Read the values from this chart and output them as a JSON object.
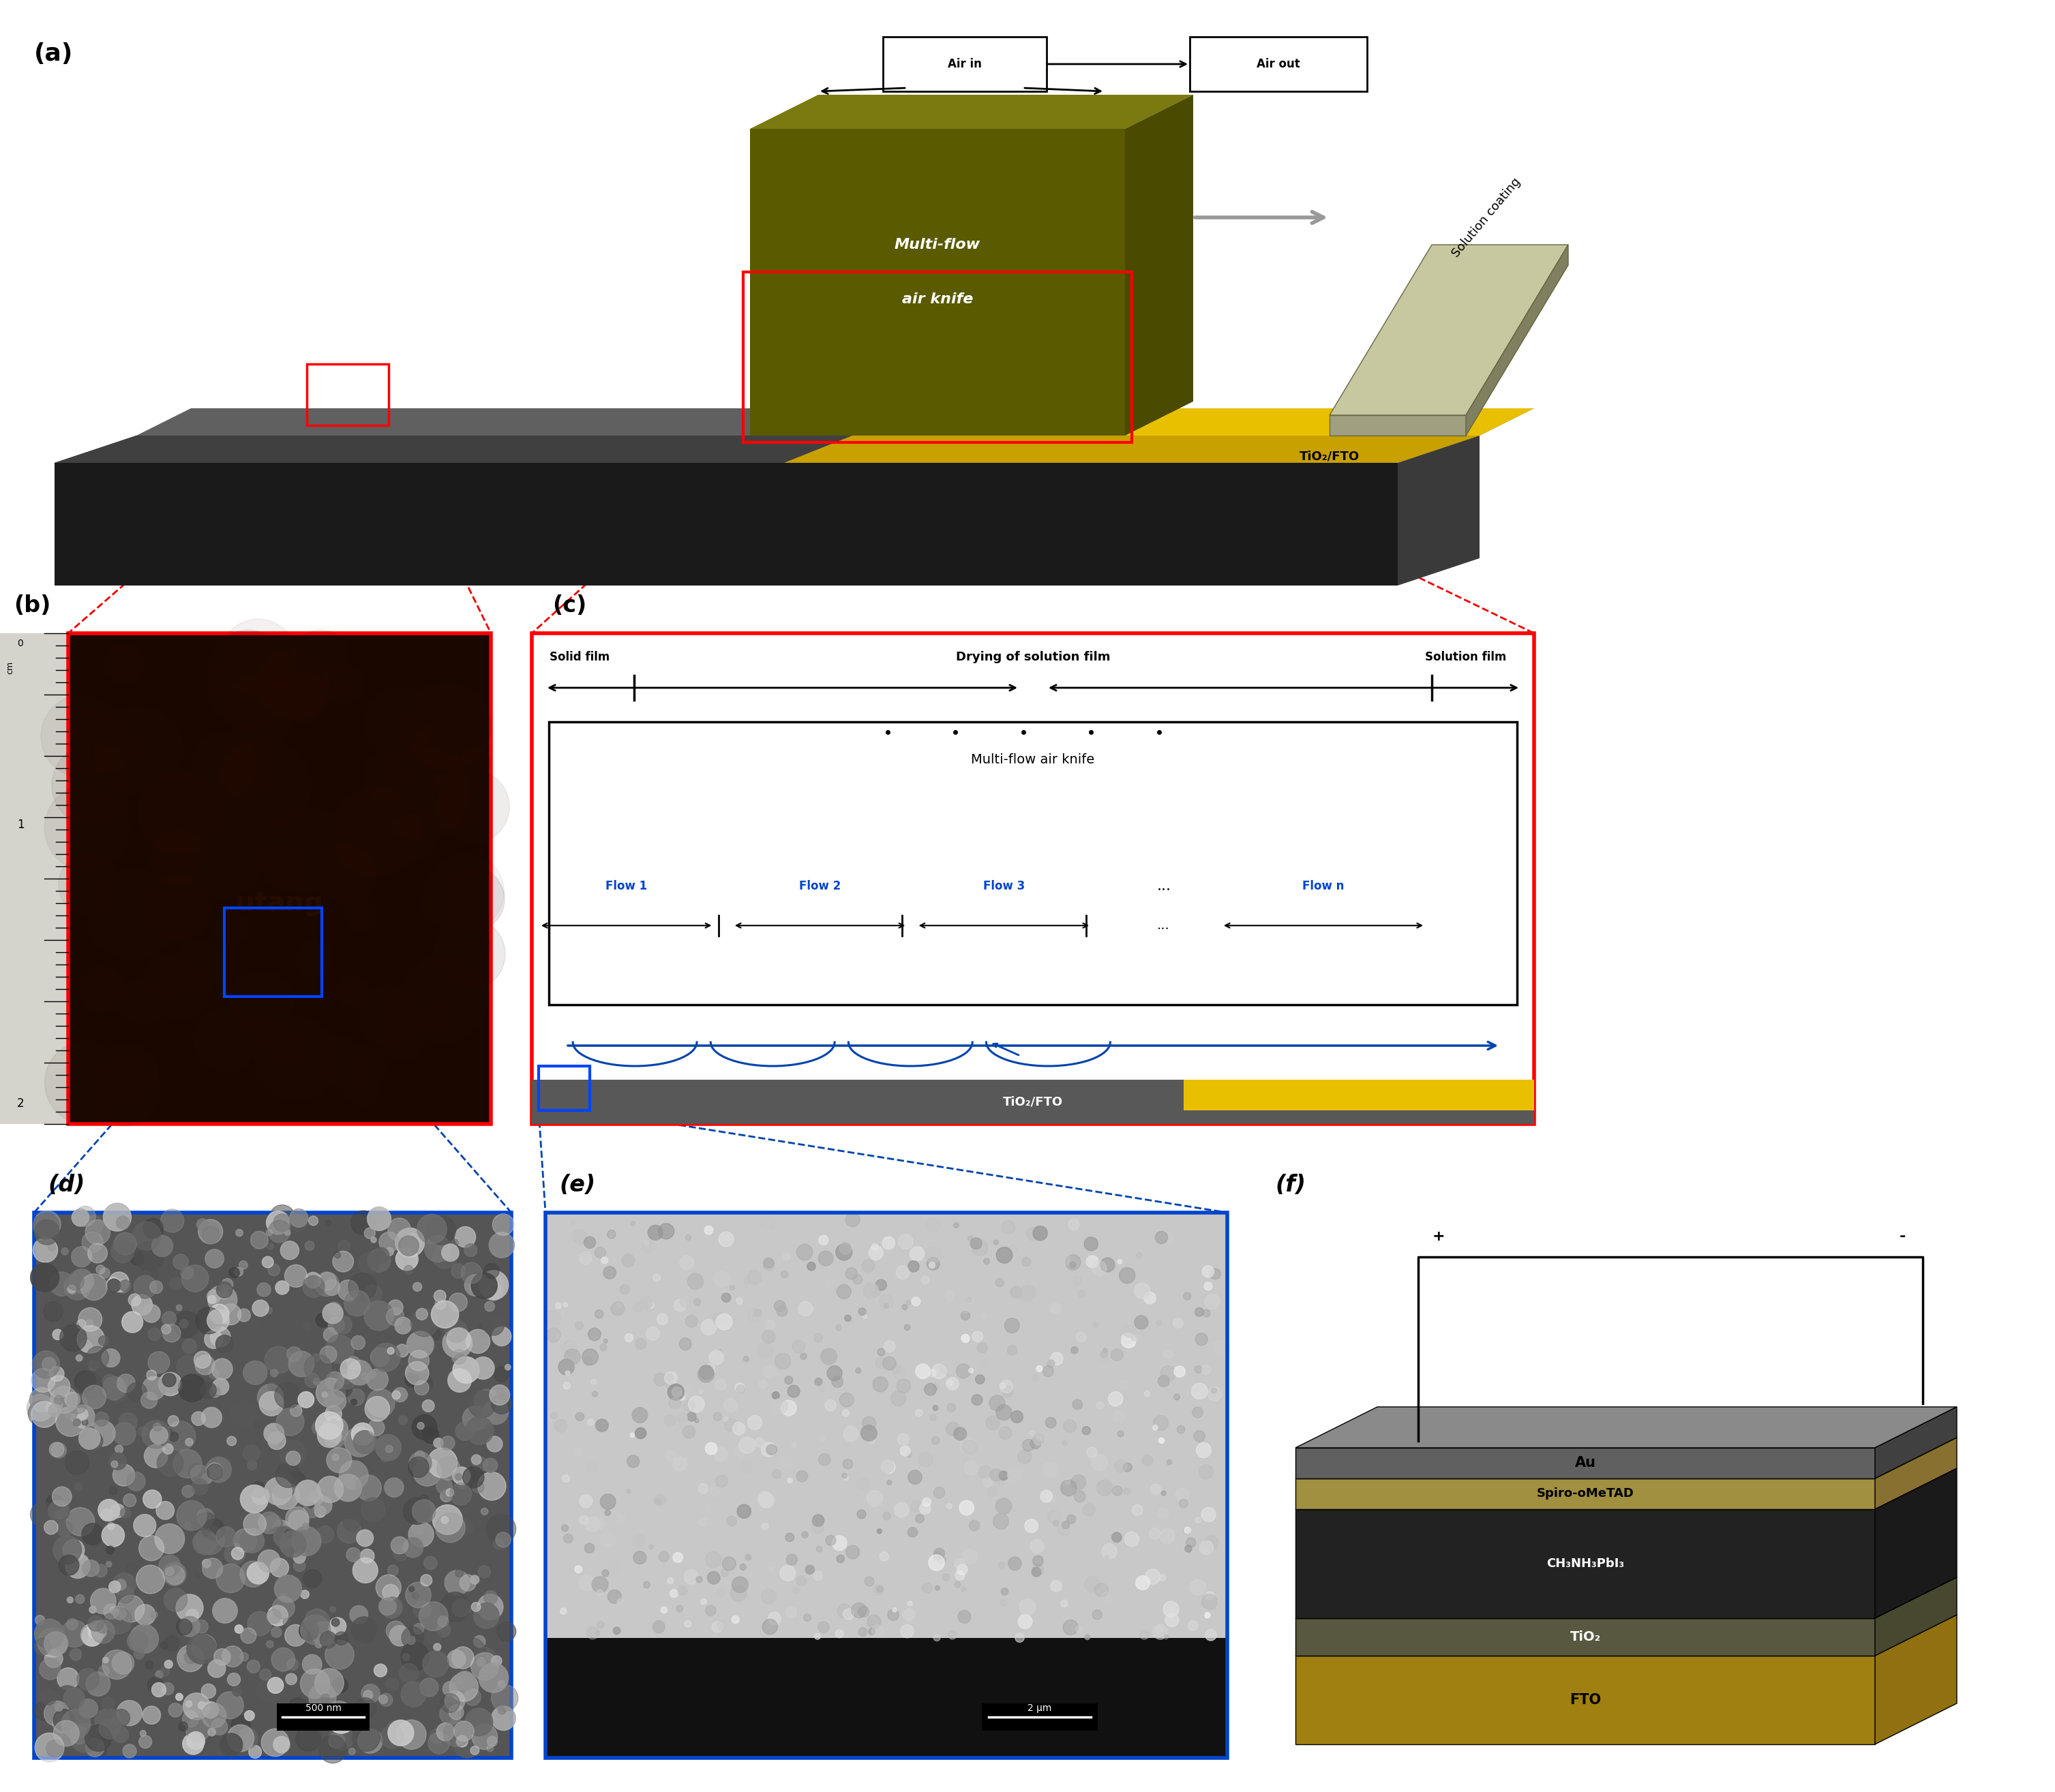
{
  "bg_color": "#ffffff",
  "panel_a": {
    "label": "(a)",
    "substrate_top_color": "#2d2d2d",
    "substrate_front_color": "#1a1a1a",
    "substrate_right_color": "#3a3a3a",
    "substrate_gray_top": "#606060",
    "substrate_gray_front": "#404040",
    "substrate_gray_right": "#505050",
    "air_knife_top_color": "#7a7a10",
    "air_knife_front_color": "#5a5a00",
    "air_knife_right_color": "#4a4a00",
    "solution_top_color": "#e8c000",
    "solution_front_color": "#c8a000",
    "blade_top_color": "#c8c8a0",
    "blade_front_color": "#a0a080",
    "blade_right_color": "#808060",
    "tio2_label": "TiO₂/FTO",
    "air_in_label": "Air in",
    "air_out_label": "Air out",
    "air_knife_label_1": "Multi-flow",
    "air_knife_label_2": "air knife",
    "solution_label": "Solution coating"
  },
  "panel_b": {
    "label": "(b)",
    "photo_color": "#1a0800",
    "ruler_bg": "#d8d8d0",
    "red_border": "#ff0000",
    "blue_box": "#0055ff"
  },
  "panel_c": {
    "label": "(c)",
    "red_border": "#ff0000",
    "blue_text_color": "#0044cc",
    "black_text": "#000000",
    "solid_film_label": "Solid film",
    "solution_film_label": "Solution film",
    "drying_label": "Drying of solution film",
    "air_knife_label": "Multi-flow air knife",
    "flow1": "Flow 1",
    "flow2": "Flow 2",
    "flow3": "Flow 3",
    "flown": "Flow n",
    "tio2_label": "TiO₂/FTO",
    "substrate_color": "#585858",
    "gold_color": "#e8c000",
    "blue_box": "#0055ff"
  },
  "panel_d": {
    "label": "(d)",
    "bg_color": "#666666",
    "blue_border": "#0055cc",
    "scale_label": "500 nm"
  },
  "panel_e": {
    "label": "(e)",
    "bg_upper_color": "#c0c0c0",
    "bg_lower_color": "#111111",
    "blue_border": "#0055cc",
    "scale_label": "2 μm"
  },
  "panel_f": {
    "label": "(f)",
    "au_color": "#8a8a8a",
    "au_front_color": "#606060",
    "spiro_color": "#c8b464",
    "spiro_front_color": "#a09040",
    "perovskite_color": "#3a3a3a",
    "perovskite_front_color": "#222222",
    "tio2_color": "#787858",
    "tio2_front_color": "#585840",
    "fto_color": "#c8a428",
    "fto_front_color": "#a08010",
    "au_label": "Au",
    "spiro_label": "Spiro-oMeTAD",
    "perovskite_label": "CH₃NH₃PbI₃",
    "tio2_label": "TiO₂",
    "fto_label": "FTO"
  },
  "red_dashes": "#ee0000",
  "blue_dashes": "#0044aa"
}
